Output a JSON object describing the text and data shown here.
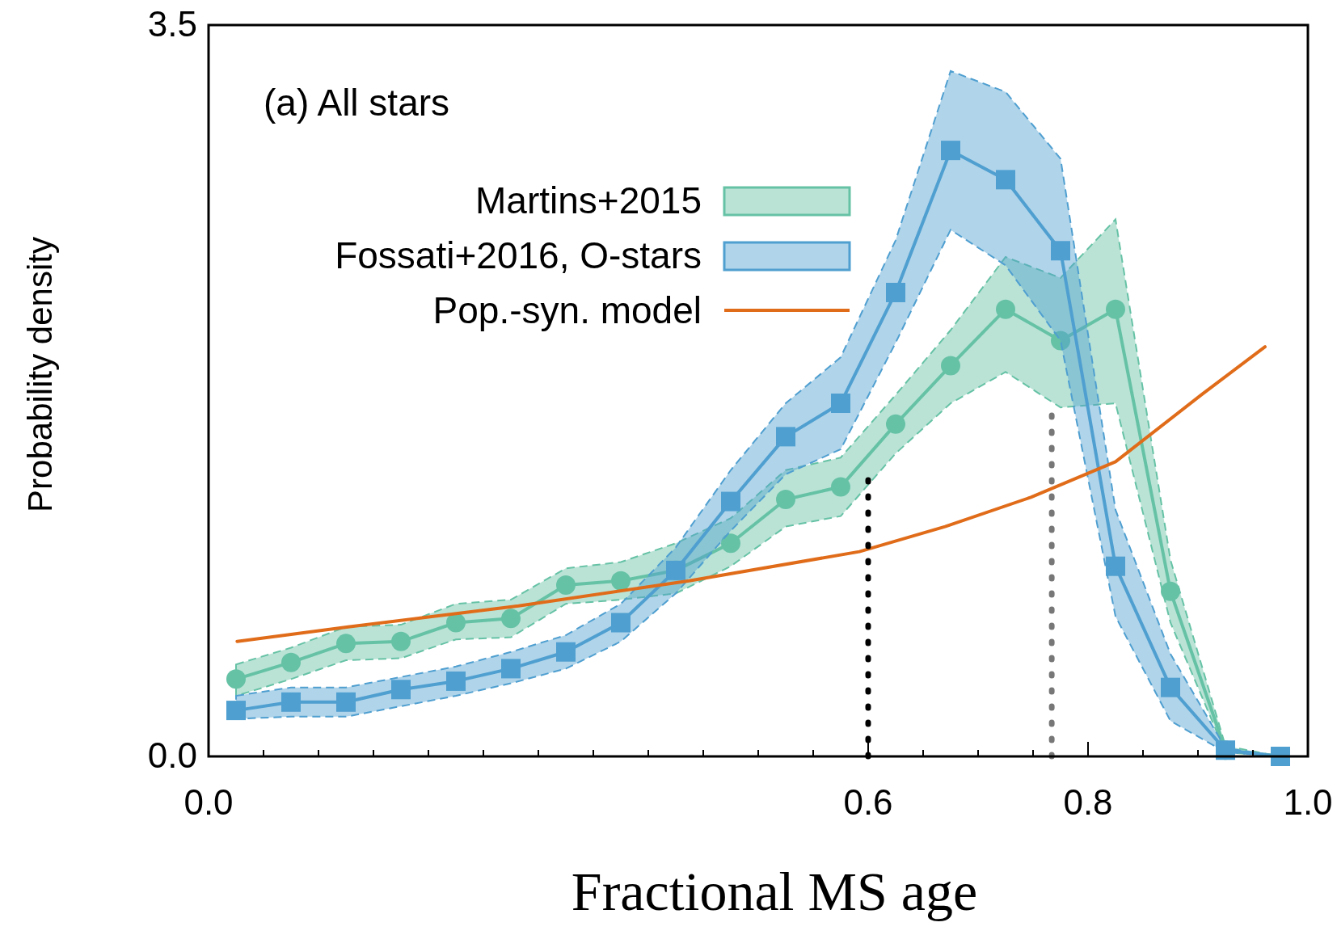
{
  "chart_data": {
    "type": "line",
    "xlabel": "Fractional MS age",
    "ylabel": "Probability density",
    "annotations": [
      "(a) All stars"
    ],
    "legend": "top",
    "xlim": [
      0,
      1
    ],
    "ylim": [
      0,
      3.5
    ],
    "xticks": [
      {
        "value": 0,
        "label": "0.0"
      },
      {
        "value": 0.05,
        "label": null
      },
      {
        "value": 0.1,
        "label": null
      },
      {
        "value": 0.15,
        "label": null
      },
      {
        "value": 0.2,
        "label": null
      },
      {
        "value": 0.25,
        "label": null
      },
      {
        "value": 0.3,
        "label": null
      },
      {
        "value": 0.35,
        "label": null
      },
      {
        "value": 0.4,
        "label": null
      },
      {
        "value": 0.45,
        "label": null
      },
      {
        "value": 0.5,
        "label": null
      },
      {
        "value": 0.55,
        "label": null
      },
      {
        "value": 0.6,
        "label": "0.6"
      },
      {
        "value": 0.65,
        "label": null
      },
      {
        "value": 0.7,
        "label": null
      },
      {
        "value": 0.75,
        "label": null
      },
      {
        "value": 0.8,
        "label": "0.8"
      },
      {
        "value": 0.85,
        "label": null
      },
      {
        "value": 0.9,
        "label": null
      },
      {
        "value": 0.95,
        "label": null
      },
      {
        "value": 1,
        "label": "1.0"
      }
    ],
    "yticks": [
      {
        "value": 0,
        "label": "0.0"
      },
      3.5
    ],
    "x": [
      0.025,
      0.075,
      0.125,
      0.175,
      0.225,
      0.275,
      0.325,
      0.375,
      0.425,
      0.475,
      0.525,
      0.575,
      0.625,
      0.675,
      0.725,
      0.775,
      0.825,
      0.875,
      0.925,
      0.975
    ],
    "series": [
      {
        "name": "Martins+2015",
        "color": "#66c2a5",
        "marker": "circle",
        "values": [
          0.37,
          0.45,
          0.54,
          0.55,
          0.64,
          0.66,
          0.82,
          0.84,
          0.89,
          1.02,
          1.23,
          1.29,
          1.59,
          1.87,
          2.14,
          1.99,
          2.14,
          0.79,
          0.03,
          0.0
        ],
        "upper": [
          0.44,
          0.52,
          0.62,
          0.63,
          0.73,
          0.75,
          0.9,
          0.93,
          1.02,
          1.14,
          1.37,
          1.43,
          1.73,
          2.04,
          2.39,
          2.29,
          2.57,
          0.94,
          0.05,
          0.0
        ],
        "lower": [
          0.29,
          0.37,
          0.46,
          0.47,
          0.56,
          0.57,
          0.73,
          0.75,
          0.78,
          0.91,
          1.1,
          1.15,
          1.45,
          1.69,
          1.84,
          1.67,
          1.69,
          0.64,
          0.02,
          0.0
        ]
      },
      {
        "name": "Fossati+2016, O-stars",
        "color": "#4f9fd0",
        "marker": "square",
        "values": [
          0.22,
          0.26,
          0.26,
          0.32,
          0.36,
          0.42,
          0.5,
          0.64,
          0.89,
          1.22,
          1.53,
          1.69,
          2.22,
          2.9,
          2.76,
          2.42,
          0.91,
          0.33,
          0.03,
          0.0
        ],
        "upper": [
          0.29,
          0.33,
          0.33,
          0.38,
          0.43,
          0.5,
          0.58,
          0.73,
          1.0,
          1.37,
          1.69,
          1.91,
          2.47,
          3.28,
          3.18,
          2.86,
          1.18,
          0.49,
          0.04,
          0.0
        ],
        "lower": [
          0.18,
          0.19,
          0.19,
          0.24,
          0.29,
          0.35,
          0.42,
          0.55,
          0.78,
          1.08,
          1.35,
          1.47,
          1.98,
          2.52,
          2.35,
          1.99,
          0.67,
          0.17,
          0.02,
          0.0
        ]
      },
      {
        "name": "Pop.-syn. model",
        "color": "#e06c1a",
        "marker": "none",
        "x": [
          0.026,
          0.127,
          0.282,
          0.437,
          0.592,
          0.67,
          0.748,
          0.825,
          0.903,
          0.961
        ],
        "values": [
          0.55,
          0.62,
          0.72,
          0.84,
          0.98,
          1.1,
          1.24,
          1.41,
          1.73,
          1.96
        ]
      },
      {
        "color": "#000000",
        "marker": "none",
        "line_style": "dotted",
        "x": [
          0.6,
          0.6
        ],
        "values": [
          0,
          1.35
        ]
      },
      {
        "color": "#777777",
        "marker": "none",
        "line_style": "dotted",
        "x": [
          0.767,
          0.767
        ],
        "values": [
          0,
          1.67
        ]
      }
    ]
  }
}
